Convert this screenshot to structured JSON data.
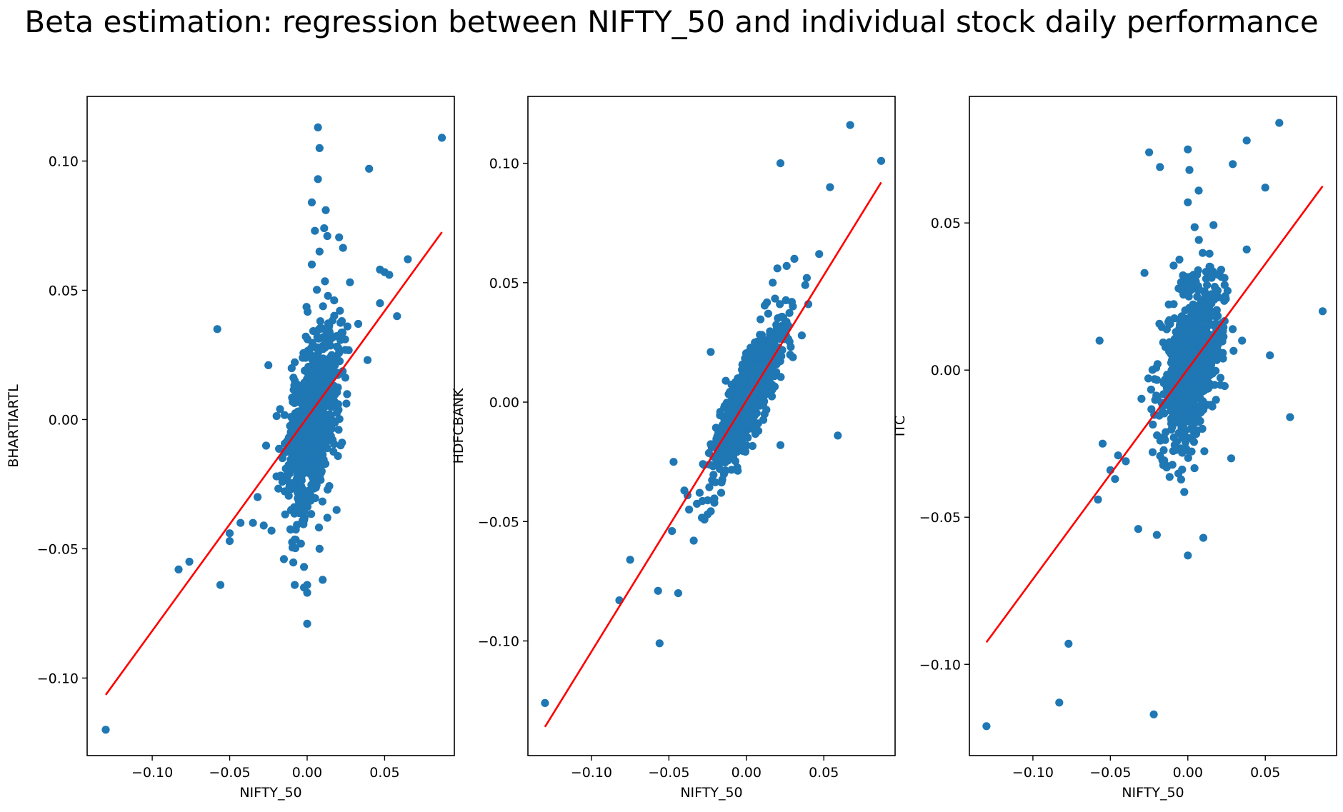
{
  "figure": {
    "title": "Beta estimation: regression between NIFTY_50 and individual stock daily performance"
  },
  "colors": {
    "points": "#1f77b4",
    "fit_line": "#ff0000",
    "axes": "#000000"
  },
  "chart_data": [
    {
      "type": "scatter",
      "xlabel": "NIFTY_50",
      "ylabel": "BHARTIARTL",
      "xlim": [
        -0.142,
        0.095
      ],
      "ylim": [
        -0.13,
        0.125
      ],
      "xticks": [
        -0.1,
        -0.05,
        0.0,
        0.05
      ],
      "xtick_labels": [
        "−0.10",
        "−0.05",
        "0.00",
        "0.05"
      ],
      "yticks": [
        -0.1,
        -0.05,
        0.0,
        0.05,
        0.1
      ],
      "ytick_labels": [
        "−0.10",
        "−0.05",
        "0.00",
        "0.05",
        "0.10"
      ],
      "fit_line": {
        "x": [
          -0.13,
          0.087
        ],
        "y": [
          -0.1065,
          0.0725
        ]
      },
      "outliers": [
        [
          -0.13,
          -0.12
        ],
        [
          0.087,
          0.109
        ],
        [
          0.007,
          0.113
        ],
        [
          0.008,
          0.105
        ],
        [
          0.007,
          0.093
        ],
        [
          0.04,
          0.097
        ],
        [
          0.003,
          0.084
        ],
        [
          0.012,
          0.081
        ],
        [
          0.005,
          0.073
        ],
        [
          0.013,
          0.071
        ],
        [
          0.011,
          0.074
        ],
        [
          0.008,
          0.065
        ],
        [
          0.003,
          0.06
        ],
        [
          0.05,
          0.057
        ],
        [
          0.047,
          0.058
        ],
        [
          0.065,
          0.062
        ],
        [
          0.053,
          0.056
        ],
        [
          0.047,
          0.045
        ],
        [
          0.058,
          0.04
        ],
        [
          -0.058,
          0.035
        ],
        [
          0.033,
          0.037
        ],
        [
          0.026,
          0.036
        ],
        [
          -0.025,
          0.021
        ],
        [
          0.039,
          0.023
        ],
        [
          -0.083,
          -0.058
        ],
        [
          -0.076,
          -0.055
        ],
        [
          -0.056,
          -0.064
        ],
        [
          -0.05,
          -0.047
        ],
        [
          -0.05,
          -0.044
        ],
        [
          -0.043,
          -0.04
        ],
        [
          -0.035,
          -0.04
        ],
        [
          -0.028,
          -0.041
        ],
        [
          -0.023,
          -0.043
        ],
        [
          -0.015,
          -0.054
        ],
        [
          -0.002,
          -0.065
        ],
        [
          -0.008,
          -0.064
        ],
        [
          0.0,
          -0.079
        ],
        [
          0.0,
          -0.067
        ],
        [
          0.0,
          -0.064
        ],
        [
          0.01,
          -0.062
        ],
        [
          -0.002,
          -0.057
        ],
        [
          0.008,
          -0.05
        ],
        [
          0.019,
          -0.035
        ],
        [
          -0.032,
          -0.03
        ],
        [
          0.013,
          -0.038
        ],
        [
          -0.004,
          -0.048
        ]
      ],
      "cluster": {
        "center": [
          0.003,
          0.0
        ],
        "sx": 0.0085,
        "sy": 0.0175,
        "r": 0.52,
        "n": 850,
        "seed": 11
      }
    },
    {
      "type": "scatter",
      "xlabel": "NIFTY_50",
      "ylabel": "HDFCBANK",
      "xlim": [
        -0.141,
        0.096
      ],
      "ylim": [
        -0.148,
        0.128
      ],
      "xticks": [
        -0.1,
        -0.05,
        0.0,
        0.05
      ],
      "xtick_labels": [
        "−0.10",
        "−0.05",
        "0.00",
        "0.05"
      ],
      "yticks": [
        -0.1,
        -0.05,
        0.0,
        0.05,
        0.1
      ],
      "ytick_labels": [
        "−0.10",
        "−0.05",
        "0.00",
        "0.05",
        "0.10"
      ],
      "fit_line": {
        "x": [
          -0.13,
          0.087
        ],
        "y": [
          -0.136,
          0.092
        ]
      },
      "outliers": [
        [
          -0.13,
          -0.126
        ],
        [
          0.087,
          0.101
        ],
        [
          0.067,
          0.116
        ],
        [
          0.022,
          0.1
        ],
        [
          0.054,
          0.09
        ],
        [
          0.047,
          0.062
        ],
        [
          0.059,
          -0.014
        ],
        [
          -0.082,
          -0.083
        ],
        [
          -0.075,
          -0.066
        ],
        [
          -0.056,
          -0.101
        ],
        [
          -0.057,
          -0.079
        ],
        [
          -0.044,
          -0.08
        ],
        [
          -0.048,
          -0.054
        ],
        [
          -0.034,
          -0.058
        ],
        [
          -0.037,
          -0.045
        ],
        [
          -0.04,
          -0.037
        ],
        [
          -0.038,
          -0.039
        ],
        [
          -0.047,
          -0.025
        ],
        [
          -0.025,
          -0.047
        ],
        [
          0.022,
          -0.018
        ],
        [
          -0.023,
          0.021
        ],
        [
          0.04,
          0.041
        ],
        [
          0.038,
          0.049
        ],
        [
          0.039,
          0.052
        ],
        [
          0.02,
          0.056
        ],
        [
          0.017,
          0.05
        ],
        [
          0.031,
          0.06
        ],
        [
          0.026,
          0.057
        ]
      ],
      "cluster": {
        "center": [
          0.0,
          0.0
        ],
        "sx": 0.0105,
        "sy": 0.0145,
        "r": 0.83,
        "n": 850,
        "seed": 23
      }
    },
    {
      "type": "scatter",
      "xlabel": "NIFTY_50",
      "ylabel": "ITC",
      "xlim": [
        -0.141,
        0.096
      ],
      "ylim": [
        -0.131,
        0.093
      ],
      "xticks": [
        -0.1,
        -0.05,
        0.0,
        0.05
      ],
      "xtick_labels": [
        "−0.10",
        "−0.05",
        "0.00",
        "0.05"
      ],
      "yticks": [
        -0.1,
        -0.05,
        0.0,
        0.05
      ],
      "ytick_labels": [
        "−0.10",
        "−0.05",
        "0.00",
        "0.05"
      ],
      "fit_line": {
        "x": [
          -0.13,
          0.087
        ],
        "y": [
          -0.0925,
          0.0625
        ]
      },
      "outliers": [
        [
          -0.13,
          -0.121
        ],
        [
          -0.083,
          -0.113
        ],
        [
          -0.077,
          -0.093
        ],
        [
          -0.022,
          -0.117
        ],
        [
          0.059,
          0.084
        ],
        [
          0.087,
          0.02
        ],
        [
          0.038,
          0.078
        ],
        [
          0.029,
          0.07
        ],
        [
          0.05,
          0.062
        ],
        [
          0.038,
          0.041
        ],
        [
          0.066,
          -0.016
        ],
        [
          0.053,
          0.005
        ],
        [
          -0.025,
          0.074
        ],
        [
          -0.018,
          0.069
        ],
        [
          0.0,
          0.075
        ],
        [
          0.001,
          0.068
        ],
        [
          0.007,
          0.061
        ],
        [
          0.0,
          0.057
        ],
        [
          -0.057,
          0.01
        ],
        [
          -0.058,
          -0.044
        ],
        [
          -0.047,
          -0.037
        ],
        [
          -0.05,
          -0.034
        ],
        [
          -0.055,
          -0.025
        ],
        [
          -0.045,
          -0.029
        ],
        [
          -0.04,
          -0.031
        ],
        [
          -0.02,
          -0.056
        ],
        [
          -0.032,
          -0.054
        ],
        [
          0.0,
          -0.063
        ],
        [
          0.01,
          -0.057
        ],
        [
          0.035,
          0.01
        ],
        [
          0.028,
          -0.03
        ],
        [
          -0.028,
          0.033
        ]
      ],
      "cluster": {
        "center": [
          0.002,
          0.003
        ],
        "sx": 0.0095,
        "sy": 0.0145,
        "r": 0.45,
        "n": 850,
        "seed": 37
      }
    }
  ]
}
